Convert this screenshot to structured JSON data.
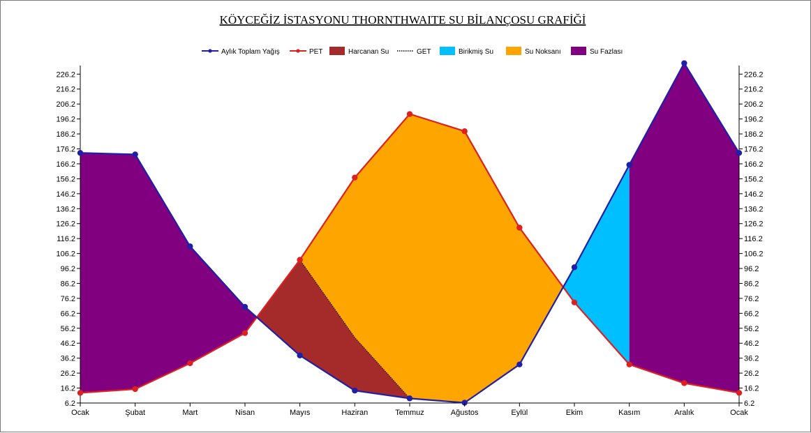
{
  "chart_data": {
    "type": "area",
    "title": "KÖYCEĞİZ İSTASYONU THORNTHWAITE SU BİLANÇOSU GRAFİĞİ",
    "xlabel": "",
    "ylabel": "",
    "categories": [
      "Ocak",
      "Şubat",
      "Mart",
      "Nisan",
      "Mayıs",
      "Haziran",
      "Temmuz",
      "Ağustos",
      "Eylül",
      "Ekim",
      "Kasım",
      "Aralık",
      "Ocak"
    ],
    "ylim": [
      6.2,
      231
    ],
    "yticks": [
      "6.2",
      "16.2",
      "26.2",
      "36.2",
      "46.2",
      "56.2",
      "66.2",
      "76.2",
      "86.2",
      "96.2",
      "106.2",
      "116.2",
      "126.2",
      "136.2",
      "146.2",
      "156.2",
      "166.2",
      "176.2",
      "186.2",
      "196.2",
      "206.2",
      "216.2",
      "226.2"
    ],
    "legend_position": "top-center",
    "series": [
      {
        "name": "Aylık Toplam Yağış",
        "kind": "line",
        "color": "#1f1fa8",
        "values": [
          173.5,
          172.5,
          111.0,
          70.5,
          38.0,
          14.5,
          9.3,
          6.4,
          32.0,
          97.0,
          165.5,
          233.5,
          173.5
        ]
      },
      {
        "name": "PET",
        "kind": "line",
        "color": "#dd2020",
        "values": [
          13.0,
          15.5,
          32.8,
          53.0,
          102.0,
          157.0,
          199.5,
          188.0,
          123.5,
          73.5,
          32.0,
          19.5,
          13.0
        ]
      },
      {
        "name": "Harcanan Su",
        "kind": "area",
        "color": "#a52a2a"
      },
      {
        "name": "GET",
        "kind": "dotted-line",
        "color": "#000000",
        "values": [
          13.0,
          15.5,
          32.8,
          53.0,
          102.0,
          50.0,
          9.3,
          6.4,
          32.0,
          73.5,
          32.0,
          19.5,
          13.0
        ]
      },
      {
        "name": "Birikmiş Su",
        "kind": "area",
        "color": "#00bfff"
      },
      {
        "name": "Su Noksanı",
        "kind": "area",
        "color": "#ffa500"
      },
      {
        "name": "Su Fazlası",
        "kind": "area",
        "color": "#800080"
      }
    ]
  }
}
